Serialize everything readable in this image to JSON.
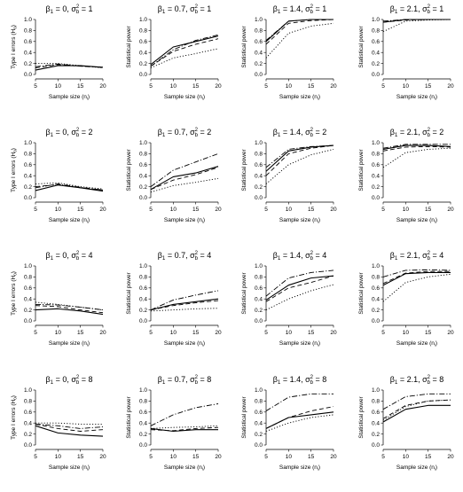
{
  "chart_data": {
    "type": "line",
    "layout": "4x4 grid",
    "x": [
      5,
      10,
      15,
      20
    ],
    "xlim": [
      5,
      20
    ],
    "ylim": [
      0,
      1
    ],
    "xticks": [
      "5",
      "10",
      "15",
      "20"
    ],
    "yticks": [
      "0.0",
      "0.2",
      "0.4",
      "0.6",
      "0.8",
      "1.0"
    ],
    "xlabel": "Sample size (n",
    "xlabel_sub": "i",
    "xlabel_close": ")",
    "line_styles": [
      "solid",
      "dashed",
      "dotted",
      "dashdot"
    ],
    "panels": [
      {
        "row": 0,
        "col": 0,
        "beta": "0",
        "sigma": "1",
        "ylabel": "Type I errors (H",
        "ylabel_sub": "0",
        "ylabel_close": ")",
        "series": [
          [
            0.08,
            0.16,
            0.16,
            0.13
          ],
          [
            0.12,
            0.18,
            0.15,
            0.13
          ],
          [
            0.2,
            0.2,
            0.16,
            0.12
          ],
          [
            0.14,
            0.19,
            0.15,
            0.13
          ]
        ]
      },
      {
        "row": 0,
        "col": 1,
        "beta": "0.7",
        "sigma": "1",
        "ylabel": "Statistical power",
        "series": [
          [
            0.18,
            0.5,
            0.6,
            0.7
          ],
          [
            0.15,
            0.42,
            0.55,
            0.65
          ],
          [
            0.12,
            0.3,
            0.38,
            0.47
          ],
          [
            0.15,
            0.45,
            0.62,
            0.72
          ]
        ]
      },
      {
        "row": 0,
        "col": 2,
        "beta": "1.4",
        "sigma": "1",
        "ylabel": "Statistical power",
        "series": [
          [
            0.6,
            0.97,
            1.0,
            1.0
          ],
          [
            0.55,
            0.93,
            0.98,
            1.0
          ],
          [
            0.3,
            0.75,
            0.88,
            0.93
          ],
          [
            0.62,
            0.97,
            1.0,
            1.0
          ]
        ]
      },
      {
        "row": 0,
        "col": 3,
        "beta": "2.1",
        "sigma": "1",
        "ylabel": "Statistical power",
        "series": [
          [
            0.95,
            1.0,
            1.0,
            1.0
          ],
          [
            0.95,
            0.99,
            1.0,
            1.0
          ],
          [
            0.78,
            0.97,
            0.99,
            1.0
          ],
          [
            0.97,
            1.0,
            1.0,
            1.0
          ]
        ]
      },
      {
        "row": 1,
        "col": 0,
        "beta": "0",
        "sigma": "2",
        "ylabel": "Type I errors (H",
        "ylabel_sub": "0",
        "ylabel_close": ")",
        "series": [
          [
            0.13,
            0.23,
            0.18,
            0.12
          ],
          [
            0.2,
            0.24,
            0.18,
            0.14
          ],
          [
            0.25,
            0.27,
            0.2,
            0.16
          ],
          [
            0.18,
            0.25,
            0.19,
            0.14
          ]
        ]
      },
      {
        "row": 1,
        "col": 1,
        "beta": "0.7",
        "sigma": "2",
        "ylabel": "Statistical power",
        "series": [
          [
            0.15,
            0.38,
            0.45,
            0.57
          ],
          [
            0.15,
            0.32,
            0.42,
            0.55
          ],
          [
            0.1,
            0.22,
            0.28,
            0.35
          ],
          [
            0.2,
            0.5,
            0.65,
            0.8
          ]
        ]
      },
      {
        "row": 1,
        "col": 2,
        "beta": "1.4",
        "sigma": "2",
        "ylabel": "Statistical power",
        "series": [
          [
            0.48,
            0.85,
            0.92,
            0.95
          ],
          [
            0.4,
            0.8,
            0.9,
            0.95
          ],
          [
            0.25,
            0.6,
            0.78,
            0.88
          ],
          [
            0.55,
            0.88,
            0.93,
            0.95
          ]
        ]
      },
      {
        "row": 1,
        "col": 3,
        "beta": "2.1",
        "sigma": "2",
        "ylabel": "Statistical power",
        "series": [
          [
            0.88,
            0.95,
            0.95,
            0.93
          ],
          [
            0.85,
            0.92,
            0.93,
            0.92
          ],
          [
            0.55,
            0.82,
            0.88,
            0.9
          ],
          [
            0.9,
            0.97,
            0.97,
            0.97
          ]
        ]
      },
      {
        "row": 2,
        "col": 0,
        "beta": "0",
        "sigma": "4",
        "ylabel": "Type I errors (H",
        "ylabel_sub": "0",
        "ylabel_close": ")",
        "series": [
          [
            0.2,
            0.22,
            0.18,
            0.12
          ],
          [
            0.28,
            0.26,
            0.2,
            0.15
          ],
          [
            0.34,
            0.3,
            0.25,
            0.2
          ],
          [
            0.3,
            0.29,
            0.25,
            0.2
          ]
        ]
      },
      {
        "row": 2,
        "col": 1,
        "beta": "0.7",
        "sigma": "4",
        "ylabel": "Statistical power",
        "series": [
          [
            0.2,
            0.3,
            0.35,
            0.4
          ],
          [
            0.2,
            0.28,
            0.33,
            0.37
          ],
          [
            0.18,
            0.2,
            0.22,
            0.23
          ],
          [
            0.2,
            0.38,
            0.47,
            0.55
          ]
        ]
      },
      {
        "row": 2,
        "col": 2,
        "beta": "1.4",
        "sigma": "4",
        "ylabel": "Statistical power",
        "series": [
          [
            0.38,
            0.65,
            0.78,
            0.82
          ],
          [
            0.35,
            0.6,
            0.7,
            0.82
          ],
          [
            0.2,
            0.4,
            0.55,
            0.66
          ],
          [
            0.45,
            0.78,
            0.88,
            0.92
          ]
        ]
      },
      {
        "row": 2,
        "col": 3,
        "beta": "2.1",
        "sigma": "4",
        "ylabel": "Statistical power",
        "series": [
          [
            0.65,
            0.86,
            0.88,
            0.88
          ],
          [
            0.68,
            0.87,
            0.9,
            0.9
          ],
          [
            0.35,
            0.7,
            0.8,
            0.85
          ],
          [
            0.8,
            0.92,
            0.93,
            0.92
          ]
        ]
      },
      {
        "row": 3,
        "col": 0,
        "beta": "0",
        "sigma": "8",
        "ylabel": "Type I errors (H",
        "ylabel_sub": "0",
        "ylabel_close": ")",
        "series": [
          [
            0.35,
            0.22,
            0.18,
            0.16
          ],
          [
            0.38,
            0.3,
            0.25,
            0.28
          ],
          [
            0.4,
            0.4,
            0.38,
            0.38
          ],
          [
            0.38,
            0.35,
            0.3,
            0.33
          ]
        ]
      },
      {
        "row": 3,
        "col": 1,
        "beta": "0.7",
        "sigma": "8",
        "ylabel": "Statistical power",
        "series": [
          [
            0.3,
            0.25,
            0.28,
            0.28
          ],
          [
            0.28,
            0.26,
            0.3,
            0.32
          ],
          [
            0.3,
            0.32,
            0.33,
            0.35
          ],
          [
            0.35,
            0.55,
            0.68,
            0.75
          ]
        ]
      },
      {
        "row": 3,
        "col": 2,
        "beta": "1.4",
        "sigma": "8",
        "ylabel": "Statistical power",
        "series": [
          [
            0.3,
            0.5,
            0.55,
            0.6
          ],
          [
            0.3,
            0.5,
            0.62,
            0.7
          ],
          [
            0.25,
            0.4,
            0.5,
            0.55
          ],
          [
            0.62,
            0.87,
            0.93,
            0.93
          ]
        ]
      },
      {
        "row": 3,
        "col": 3,
        "beta": "2.1",
        "sigma": "8",
        "ylabel": "Statistical power",
        "series": [
          [
            0.42,
            0.65,
            0.72,
            0.72
          ],
          [
            0.48,
            0.72,
            0.8,
            0.82
          ],
          [
            0.45,
            0.7,
            0.8,
            0.82
          ],
          [
            0.65,
            0.88,
            0.93,
            0.93
          ]
        ]
      }
    ]
  }
}
